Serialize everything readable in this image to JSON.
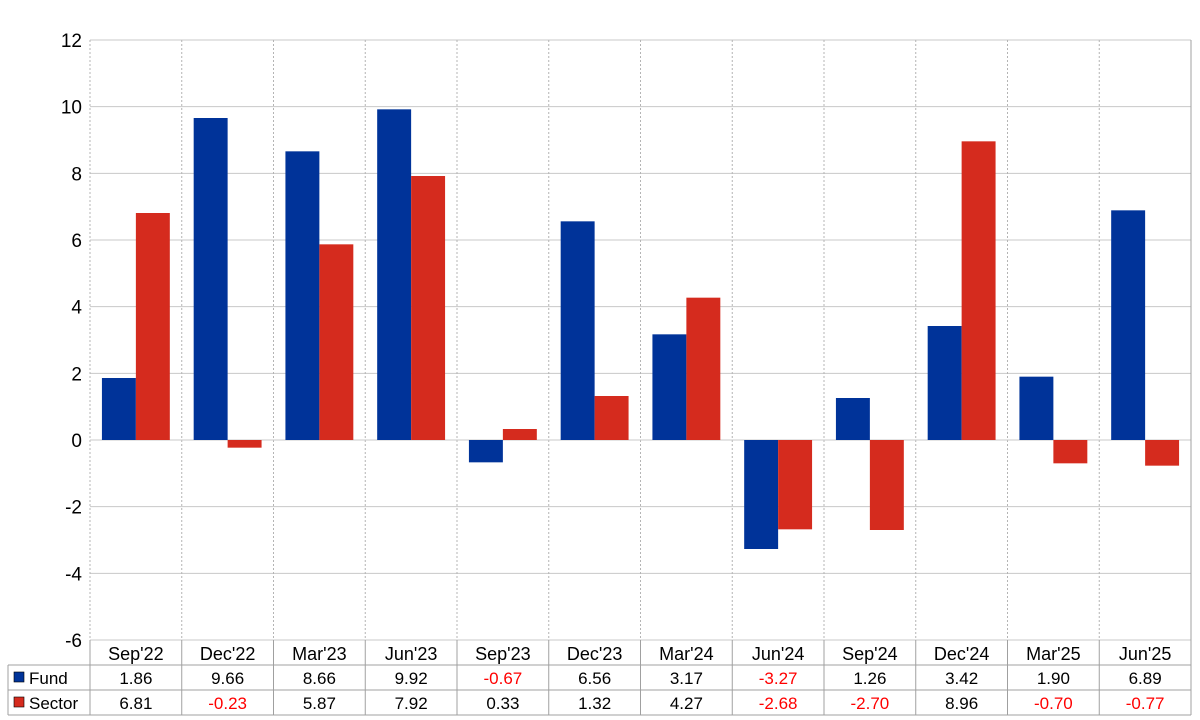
{
  "chart_data": {
    "type": "bar",
    "title": "",
    "xlabel": "",
    "ylabel": "",
    "ylim": [
      -6,
      12
    ],
    "yticks": [
      -6,
      -4,
      -2,
      0,
      2,
      4,
      6,
      8,
      10,
      12
    ],
    "grid": true,
    "legend_placement": "bottom-left table",
    "categories": [
      "Sep'22",
      "Dec'22",
      "Mar'23",
      "Jun'23",
      "Sep'23",
      "Dec'23",
      "Mar'24",
      "Jun'24",
      "Sep'24",
      "Dec'24",
      "Mar'25",
      "Jun'25"
    ],
    "series": [
      {
        "name": "Fund",
        "color": "#003399",
        "values": [
          1.86,
          9.66,
          8.66,
          9.92,
          -0.67,
          6.56,
          3.17,
          -3.27,
          1.26,
          3.42,
          1.9,
          6.89
        ],
        "labels": [
          "1.86",
          "9.66",
          "8.66",
          "9.92",
          "-0.67",
          "6.56",
          "3.17",
          "-3.27",
          "1.26",
          "3.42",
          "1.90",
          "6.89"
        ]
      },
      {
        "name": "Sector",
        "color": "#d52b1e",
        "values": [
          6.81,
          -0.23,
          5.87,
          7.92,
          0.33,
          1.32,
          4.27,
          -2.68,
          -2.7,
          8.96,
          -0.7,
          -0.77
        ],
        "labels": [
          "6.81",
          "-0.23",
          "5.87",
          "7.92",
          "0.33",
          "1.32",
          "4.27",
          "-2.68",
          "-2.70",
          "8.96",
          "-0.70",
          "-0.77"
        ]
      }
    ],
    "negative_value_color": "#ff0000"
  }
}
